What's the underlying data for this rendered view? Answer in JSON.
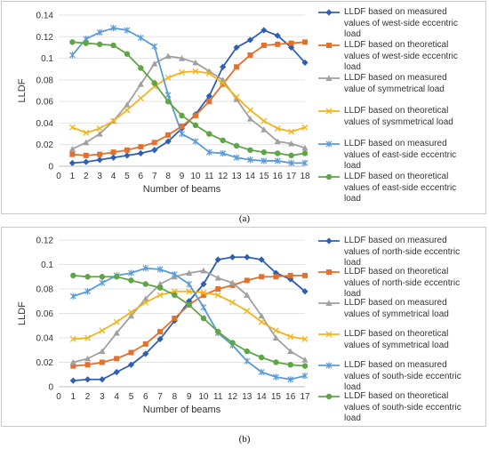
{
  "captions": [
    "(a)",
    "(b)"
  ],
  "chart_data": [
    {
      "type": "line",
      "xlabel": "Number of beams",
      "ylabel": "LLDF",
      "xlim": [
        0,
        18
      ],
      "ylim": [
        0,
        0.14
      ],
      "xticks": [
        0,
        1,
        2,
        3,
        4,
        5,
        6,
        7,
        8,
        9,
        10,
        11,
        12,
        13,
        14,
        15,
        16,
        17,
        18
      ],
      "yticks": [
        "0",
        "0.02",
        "0.04",
        "0.06",
        "0.08",
        "0.1",
        "0.12",
        "0.14"
      ],
      "grid": "horizontal",
      "legend_position": "right",
      "x": [
        1,
        2,
        3,
        4,
        5,
        6,
        7,
        8,
        9,
        10,
        11,
        12,
        13,
        14,
        15,
        16,
        17,
        18
      ],
      "series": [
        {
          "name": "LLDF based on measured values of west-side eccentric load",
          "color": "#2e5fb4",
          "marker": "diamond",
          "values": [
            0.003,
            0.004,
            0.006,
            0.008,
            0.01,
            0.012,
            0.015,
            0.023,
            0.035,
            0.048,
            0.065,
            0.092,
            0.11,
            0.117,
            0.126,
            0.121,
            0.11,
            0.096
          ]
        },
        {
          "name": "LLDF based on theoretical values of west-side eccentric load",
          "color": "#e3702b",
          "marker": "square",
          "values": [
            0.011,
            0.01,
            0.011,
            0.013,
            0.015,
            0.018,
            0.022,
            0.029,
            0.037,
            0.047,
            0.06,
            0.076,
            0.092,
            0.103,
            0.112,
            0.113,
            0.114,
            0.115
          ]
        },
        {
          "name": "LLDF based on measured value of symmetrical load",
          "color": "#a0a0a0",
          "marker": "triangle",
          "values": [
            0.016,
            0.022,
            0.03,
            0.042,
            0.057,
            0.076,
            0.095,
            0.102,
            0.1,
            0.096,
            0.088,
            0.08,
            0.062,
            0.044,
            0.034,
            0.023,
            0.021,
            0.017
          ]
        },
        {
          "name": "LLDF based on theoretical values of sysmmetrical load",
          "color": "#f2b41e",
          "marker": "x",
          "values": [
            0.036,
            0.031,
            0.035,
            0.042,
            0.052,
            0.063,
            0.074,
            0.082,
            0.087,
            0.088,
            0.086,
            0.077,
            0.064,
            0.052,
            0.042,
            0.035,
            0.032,
            0.036
          ]
        },
        {
          "name": "LLDF based on measured values of east-side eccentric load",
          "color": "#5b9bd5",
          "marker": "asterisk",
          "values": [
            0.103,
            0.118,
            0.124,
            0.128,
            0.126,
            0.119,
            0.111,
            0.066,
            0.03,
            0.023,
            0.013,
            0.012,
            0.008,
            0.006,
            0.005,
            0.005,
            0.003,
            0.003
          ]
        },
        {
          "name": "LLDF based on theoretical values of east-side eccentric load",
          "color": "#5ea545",
          "marker": "circle",
          "values": [
            0.115,
            0.114,
            0.113,
            0.112,
            0.104,
            0.091,
            0.077,
            0.06,
            0.047,
            0.038,
            0.03,
            0.024,
            0.019,
            0.015,
            0.013,
            0.012,
            0.01,
            0.012
          ]
        }
      ]
    },
    {
      "type": "line",
      "xlabel": "Number of beams",
      "ylabel": "LLDF",
      "xlim": [
        0,
        17
      ],
      "ylim": [
        0,
        0.12
      ],
      "xticks": [
        0,
        1,
        2,
        3,
        4,
        5,
        6,
        7,
        8,
        9,
        10,
        11,
        12,
        13,
        14,
        15,
        16,
        17
      ],
      "yticks": [
        "0",
        "0.02",
        "0.04",
        "0.06",
        "0.08",
        "0.1",
        "0.12"
      ],
      "grid": "horizontal",
      "legend_position": "right",
      "x": [
        1,
        2,
        3,
        4,
        5,
        6,
        7,
        8,
        9,
        10,
        11,
        12,
        13,
        14,
        15,
        16,
        17
      ],
      "series": [
        {
          "name": "LLDF based on measured values of north-side eccentric load",
          "color": "#2e5fb4",
          "marker": "diamond",
          "values": [
            0.005,
            0.006,
            0.006,
            0.012,
            0.018,
            0.027,
            0.039,
            0.054,
            0.07,
            0.084,
            0.104,
            0.106,
            0.106,
            0.104,
            0.093,
            0.088,
            0.078
          ]
        },
        {
          "name": "LLDF based on theoretical values of north-side eccentric load",
          "color": "#e3702b",
          "marker": "square",
          "values": [
            0.017,
            0.018,
            0.02,
            0.023,
            0.028,
            0.035,
            0.045,
            0.056,
            0.067,
            0.075,
            0.08,
            0.083,
            0.087,
            0.09,
            0.09,
            0.091,
            0.091
          ]
        },
        {
          "name": "LLDF based on measured values of symmetrical load",
          "color": "#a0a0a0",
          "marker": "triangle",
          "values": [
            0.02,
            0.023,
            0.029,
            0.044,
            0.058,
            0.072,
            0.084,
            0.09,
            0.093,
            0.095,
            0.089,
            0.085,
            0.075,
            0.058,
            0.04,
            0.029,
            0.022
          ]
        },
        {
          "name": "LLDF based on theoretical values of symmetrical load",
          "color": "#f2b41e",
          "marker": "x",
          "values": [
            0.039,
            0.04,
            0.046,
            0.053,
            0.061,
            0.069,
            0.075,
            0.078,
            0.078,
            0.077,
            0.075,
            0.069,
            0.062,
            0.053,
            0.046,
            0.041,
            0.039
          ]
        },
        {
          "name": "LLDF based on measured values of south-side eccentric load",
          "color": "#5b9bd5",
          "marker": "asterisk",
          "values": [
            0.074,
            0.078,
            0.085,
            0.091,
            0.093,
            0.097,
            0.096,
            0.092,
            0.084,
            0.065,
            0.044,
            0.034,
            0.021,
            0.012,
            0.008,
            0.006,
            0.009
          ]
        },
        {
          "name": "LLDF based on theoretical values of south-side eccentric load",
          "color": "#5ea545",
          "marker": "circle",
          "values": [
            0.091,
            0.09,
            0.09,
            0.09,
            0.087,
            0.084,
            0.081,
            0.075,
            0.067,
            0.056,
            0.045,
            0.036,
            0.029,
            0.024,
            0.02,
            0.018,
            0.017
          ]
        }
      ]
    }
  ]
}
